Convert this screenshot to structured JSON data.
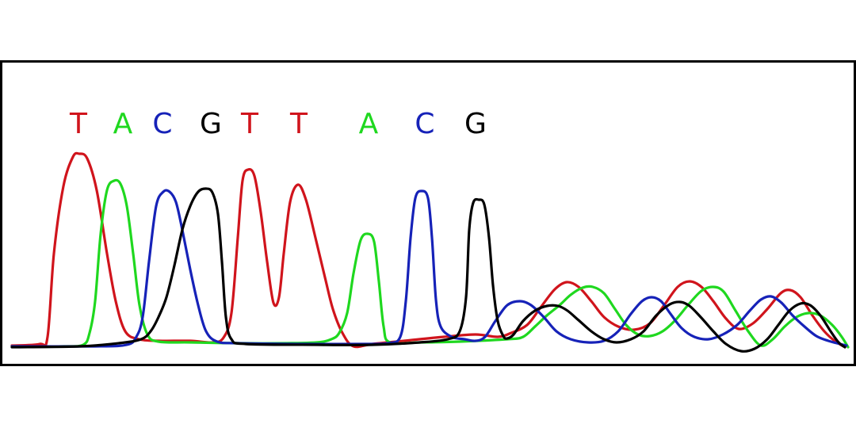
{
  "base_colors": {
    "T": "#d0141c",
    "A": "#1fd81f",
    "C": "#1622b8",
    "G": "#000000"
  },
  "trace_order": [
    "T",
    "A",
    "C",
    "G"
  ],
  "base_calls": [
    {
      "letter": "T"
    },
    {
      "letter": "A"
    },
    {
      "letter": "C"
    },
    {
      "letter": "G"
    },
    {
      "letter": "T"
    },
    {
      "letter": "T"
    },
    {
      "letter": "A"
    },
    {
      "letter": "C"
    },
    {
      "letter": "G"
    }
  ]
}
